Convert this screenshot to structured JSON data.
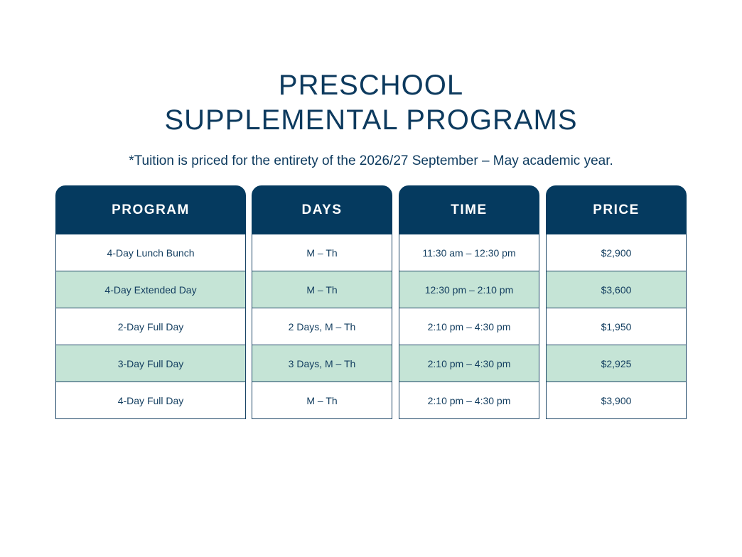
{
  "title": {
    "line1": "PRESCHOOL",
    "line2": "SUPPLEMENTAL PROGRAMS"
  },
  "subtitle": "*Tuition is priced for the entirety of the 2026/27 September – May academic year.",
  "colors": {
    "header_bg": "#053a5f",
    "alt_row_bg": "#c5e4d6",
    "text": "#0d3a5e"
  },
  "table": {
    "headers": {
      "program": "PROGRAM",
      "days": "DAYS",
      "time": "TIME",
      "price": "PRICE"
    },
    "rows": [
      {
        "program": "4-Day Lunch Bunch",
        "days": "M – Th",
        "time": "11:30 am – 12:30 pm",
        "price": "$2,900"
      },
      {
        "program": "4-Day Extended Day",
        "days": "M – Th",
        "time": "12:30 pm – 2:10 pm",
        "price": "$3,600"
      },
      {
        "program": "2-Day Full Day",
        "days": "2 Days, M – Th",
        "time": "2:10 pm – 4:30 pm",
        "price": "$1,950"
      },
      {
        "program": "3-Day Full Day",
        "days": "3 Days, M – Th",
        "time": "2:10 pm – 4:30 pm",
        "price": "$2,925"
      },
      {
        "program": "4-Day Full Day",
        "days": "M – Th",
        "time": "2:10 pm – 4:30 pm",
        "price": "$3,900"
      }
    ]
  }
}
